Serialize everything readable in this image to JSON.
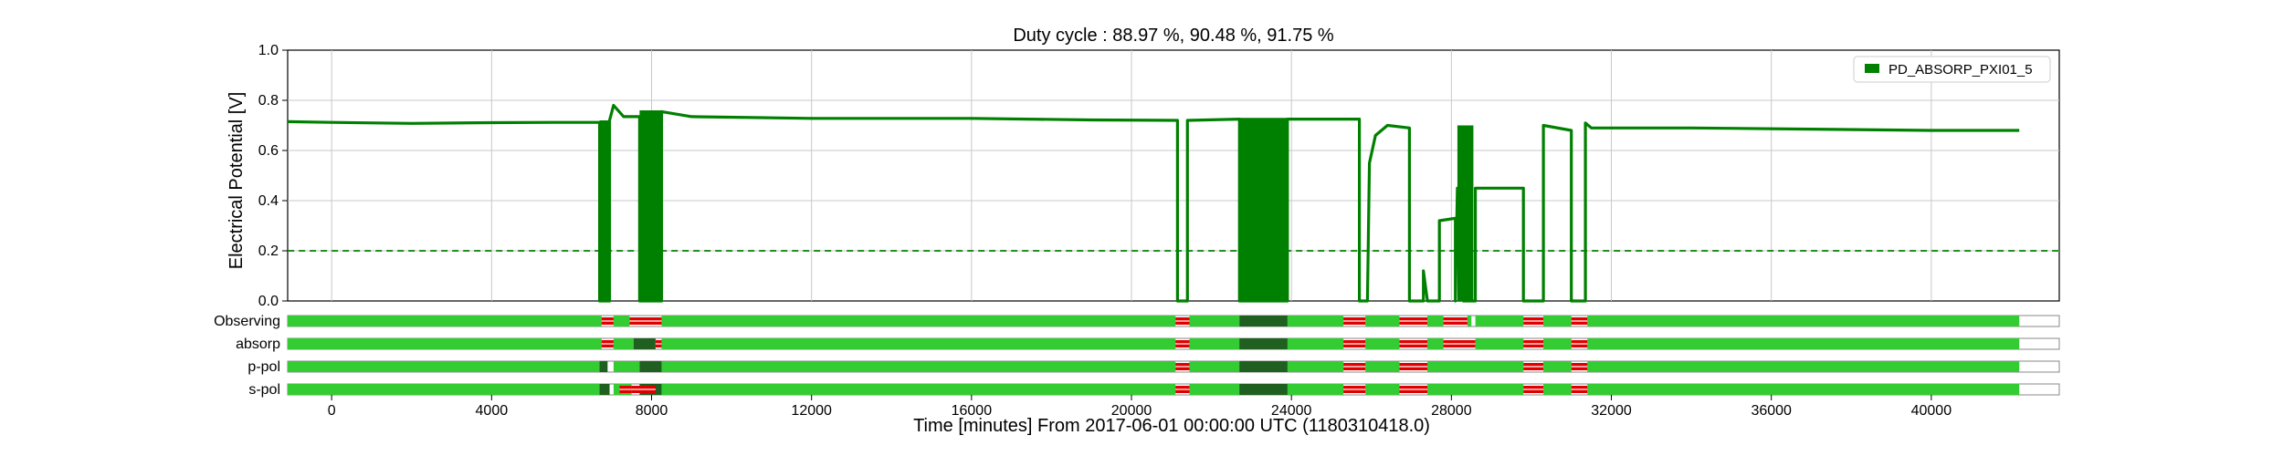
{
  "chart_data": {
    "type": "line",
    "title": "Duty cycle : 88.97 %, 90.48 %, 91.75 %",
    "xlabel": "Time [minutes] From 2017-06-01 00:00:00 UTC (1180310418.0)",
    "ylabel": "Electrical Potential [V]",
    "xlim": [
      -1100,
      43200
    ],
    "ylim": [
      0,
      1.0
    ],
    "xticks": [
      0,
      4000,
      8000,
      12000,
      16000,
      20000,
      24000,
      28000,
      32000,
      36000,
      40000
    ],
    "yticks": [
      "0.0",
      "0.2",
      "0.4",
      "0.6",
      "0.8",
      "1.0"
    ],
    "grid": true,
    "legend": {
      "placement": "top-right",
      "entries": [
        "PD_ABSORP_PXI01_5"
      ]
    },
    "threshold": {
      "value": 0.2,
      "style": "dashed"
    },
    "colors": {
      "series": "#008000",
      "active": "#33cc33",
      "dark": "#1f5f1f",
      "gap": "#e00000",
      "tick": "#000000"
    },
    "series": [
      {
        "name": "PD_ABSORP_PXI01_5",
        "points": [
          [
            -1100,
            0.715
          ],
          [
            0,
            0.712
          ],
          [
            2000,
            0.708
          ],
          [
            4000,
            0.711
          ],
          [
            5500,
            0.712
          ],
          [
            6700,
            0.712
          ],
          [
            6700,
            0.0
          ],
          [
            6950,
            0.0
          ],
          [
            6950,
            0.72
          ],
          [
            7050,
            0.78
          ],
          [
            7300,
            0.735
          ],
          [
            7700,
            0.735
          ],
          [
            7700,
            0.0
          ],
          [
            8250,
            0.0
          ],
          [
            8250,
            0.755
          ],
          [
            9000,
            0.735
          ],
          [
            12000,
            0.728
          ],
          [
            16000,
            0.728
          ],
          [
            19000,
            0.722
          ],
          [
            21150,
            0.72
          ],
          [
            21150,
            0.0
          ],
          [
            21400,
            0.0
          ],
          [
            21400,
            0.72
          ],
          [
            22700,
            0.725
          ],
          [
            22700,
            0.0
          ],
          [
            23900,
            0.0
          ],
          [
            23900,
            0.725
          ],
          [
            25700,
            0.725
          ],
          [
            25700,
            0.0
          ],
          [
            25900,
            0.0
          ],
          [
            25950,
            0.55
          ],
          [
            26100,
            0.66
          ],
          [
            26400,
            0.7
          ],
          [
            26950,
            0.69
          ],
          [
            26950,
            0.0
          ],
          [
            27300,
            0.0
          ],
          [
            27300,
            0.12
          ],
          [
            27400,
            0.0
          ],
          [
            27700,
            0.0
          ],
          [
            27700,
            0.32
          ],
          [
            28100,
            0.33
          ],
          [
            28100,
            0.0
          ],
          [
            28150,
            0.45
          ],
          [
            28300,
            0.45
          ],
          [
            28300,
            0.0
          ],
          [
            28600,
            0.0
          ],
          [
            28600,
            0.45
          ],
          [
            29800,
            0.45
          ],
          [
            29800,
            0.0
          ],
          [
            30300,
            0.0
          ],
          [
            30300,
            0.7
          ],
          [
            31000,
            0.68
          ],
          [
            31000,
            0.0
          ],
          [
            31350,
            0.0
          ],
          [
            31350,
            0.71
          ],
          [
            31500,
            0.69
          ],
          [
            34000,
            0.69
          ],
          [
            37000,
            0.685
          ],
          [
            40000,
            0.68
          ],
          [
            42200,
            0.68
          ]
        ],
        "filled_bands": [
          [
            6700,
            6950,
            0.0,
            0.72
          ],
          [
            7700,
            8250,
            0.0,
            0.76
          ],
          [
            22700,
            23900,
            0.0,
            0.73
          ],
          [
            28150,
            28550,
            0.0,
            0.7
          ]
        ]
      }
    ],
    "segment_rows": [
      {
        "label": "Observing",
        "active": [
          [
            -1100,
            6750
          ],
          [
            7050,
            7450
          ],
          [
            8250,
            21100
          ],
          [
            21450,
            22700
          ],
          [
            22700,
            23900
          ],
          [
            23900,
            25300
          ],
          [
            25850,
            26700
          ],
          [
            27400,
            27800
          ],
          [
            28400,
            28500
          ],
          [
            28600,
            29800
          ],
          [
            30300,
            31000
          ],
          [
            31400,
            42200
          ]
        ],
        "dark": [
          [
            22700,
            23900
          ]
        ],
        "gaps": [
          [
            6750,
            7050
          ],
          [
            7450,
            8250
          ],
          [
            21100,
            21450
          ],
          [
            25300,
            25850
          ],
          [
            26700,
            27400
          ],
          [
            27800,
            28400
          ],
          [
            29800,
            30300
          ],
          [
            31000,
            31400
          ]
        ]
      },
      {
        "label": "absorp",
        "active": [
          [
            -1100,
            6750
          ],
          [
            7050,
            7550
          ],
          [
            8250,
            21100
          ],
          [
            21450,
            25300
          ],
          [
            25850,
            26700
          ],
          [
            27400,
            27800
          ],
          [
            28600,
            29800
          ],
          [
            30300,
            31000
          ],
          [
            31400,
            42200
          ]
        ],
        "dark": [
          [
            7550,
            8100
          ],
          [
            22700,
            23900
          ]
        ],
        "gaps": [
          [
            6750,
            7050
          ],
          [
            8100,
            8250
          ],
          [
            21100,
            21450
          ],
          [
            25300,
            25850
          ],
          [
            26700,
            27400
          ],
          [
            27800,
            28600
          ],
          [
            29800,
            30300
          ],
          [
            31000,
            31400
          ]
        ]
      },
      {
        "label": "p-pol",
        "active": [
          [
            -1100,
            6750
          ],
          [
            7050,
            7700
          ],
          [
            8250,
            21100
          ],
          [
            21450,
            25300
          ],
          [
            25850,
            26700
          ],
          [
            27400,
            29800
          ],
          [
            30300,
            31000
          ],
          [
            31400,
            42200
          ]
        ],
        "dark": [
          [
            6700,
            6900
          ],
          [
            7700,
            8250
          ],
          [
            22700,
            23900
          ]
        ],
        "gaps": [
          [
            21100,
            21450
          ],
          [
            25300,
            25850
          ],
          [
            26700,
            27400
          ],
          [
            29800,
            30300
          ],
          [
            31000,
            31400
          ]
        ]
      },
      {
        "label": "s-pol",
        "active": [
          [
            -1100,
            6750
          ],
          [
            7050,
            7500
          ],
          [
            8250,
            21100
          ],
          [
            21450,
            25300
          ],
          [
            25850,
            26700
          ],
          [
            27400,
            29800
          ],
          [
            30300,
            31000
          ],
          [
            31400,
            42200
          ]
        ],
        "dark": [
          [
            6700,
            6950
          ],
          [
            7700,
            8250
          ],
          [
            22700,
            23900
          ]
        ],
        "gaps": [
          [
            7200,
            7500
          ],
          [
            7500,
            8100
          ],
          [
            21100,
            21450
          ],
          [
            25300,
            25850
          ],
          [
            26700,
            27400
          ],
          [
            29800,
            30300
          ],
          [
            31000,
            31400
          ]
        ]
      }
    ]
  }
}
